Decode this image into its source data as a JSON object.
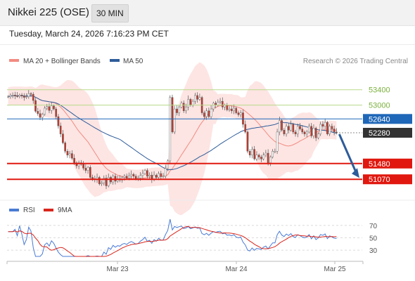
{
  "header": {
    "title": "Nikkei 225 (OSE)",
    "timeframe": "30 MIN",
    "timestamp": "Tuesday, March 24, 2026 7:16:23 PM CET"
  },
  "legend": {
    "ma20_label": "MA 20 + Bollinger Bands",
    "ma20_color": "#f28b82",
    "ma50_label": "MA 50",
    "ma50_color": "#2e5c9a",
    "copyright": "Research © 2026 Trading Central"
  },
  "rsi_legend": {
    "rsi_label": "RSI",
    "rsi_color": "#4a7bd4",
    "ma_label": "9MA",
    "ma_color": "#d9261c"
  },
  "chart_data": {
    "type": "candlestick",
    "price_range": [
      50800,
      53870
    ],
    "x_labels": [
      "Mar 23",
      "Mar 24",
      "Mar 25"
    ],
    "levels": [
      {
        "value": 53400,
        "label": "53400",
        "kind": "resistance",
        "color": "#b8d98a"
      },
      {
        "value": 53000,
        "label": "53000",
        "kind": "resistance",
        "color": "#b8d98a"
      },
      {
        "value": 52640,
        "label": "52640",
        "kind": "pivot",
        "color": "#1f67b8"
      },
      {
        "value": 52280,
        "label": "52280",
        "kind": "last_price",
        "color": "#333333"
      },
      {
        "value": 51480,
        "label": "51480",
        "kind": "support",
        "color": "#e0180f"
      },
      {
        "value": 51070,
        "label": "51070",
        "kind": "support",
        "color": "#e0180f"
      }
    ],
    "closes": [
      53220,
      53250,
      53260,
      53240,
      53230,
      53260,
      53240,
      53200,
      53220,
      53300,
      53280,
      53120,
      52840,
      52780,
      52680,
      52760,
      52920,
      52960,
      52860,
      52980,
      52900,
      52700,
      52460,
      52250,
      52020,
      51800,
      51700,
      51740,
      51620,
      51500,
      51420,
      51500,
      51460,
      51360,
      51300,
      51380,
      51120,
      51080,
      51060,
      51120,
      50950,
      50980,
      51100,
      50900,
      51120,
      51000,
      51150,
      51020,
      51080,
      51050,
      51120,
      51150,
      51100,
      51160,
      51200,
      51150,
      51080,
      51100,
      51170,
      51220,
      51300,
      51150,
      51180,
      51060,
      51180,
      51120,
      51220,
      51140,
      51150,
      51350,
      51550,
      53200,
      52300,
      52900,
      52800,
      52950,
      53050,
      52850,
      52950,
      53150,
      53000,
      53100,
      53250,
      53150,
      53200,
      52800,
      52700,
      52850,
      52700,
      52900,
      53050,
      53000,
      53080,
      53100,
      52950,
      53000,
      52880,
      52900,
      52850,
      52920,
      52800,
      52750,
      52800,
      52500,
      52300,
      51800,
      51700,
      51850,
      51600,
      51700,
      51650,
      51600,
      51700,
      51750,
      51500,
      51650,
      51800,
      51800,
      52300,
      52600,
      52350,
      52250,
      52450,
      52350,
      52500,
      52300,
      52250,
      52450,
      52380,
      52300,
      52250,
      52300,
      52450,
      52200,
      52400,
      52150,
      52250,
      52500,
      52450,
      52550,
      52250,
      52450,
      52380,
      52300,
      52280
    ],
    "ma20_band_note": "MA 20 with Bollinger Bands",
    "rsi": {
      "levels": [
        70,
        50,
        30
      ],
      "range": [
        20,
        80
      ]
    }
  }
}
